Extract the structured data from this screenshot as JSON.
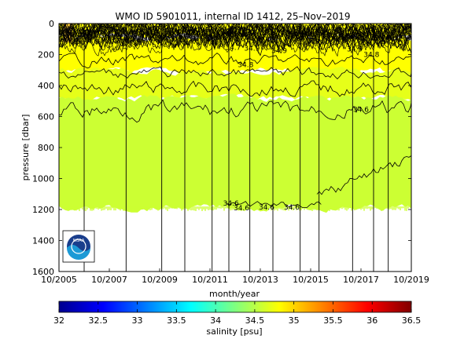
{
  "chart_data": {
    "type": "heatmap",
    "title": "WMO ID 5901011, internal ID 1412, 25–Nov–2019",
    "xlabel": "month/year",
    "ylabel": "pressure [dbar]",
    "xlim": [
      "2005-10",
      "2019-10"
    ],
    "ylim": [
      0,
      1600
    ],
    "y_reversed": true,
    "x_ticks": [
      "10/2005",
      "10/2007",
      "10/2009",
      "10/2011",
      "10/2013",
      "10/2015",
      "10/2017",
      "10/2019"
    ],
    "y_ticks": [
      0,
      200,
      400,
      600,
      800,
      1000,
      1200,
      1400,
      1600
    ],
    "grid": false,
    "colorbar": {
      "label": "salinity [psu]",
      "min": 32,
      "max": 36.5,
      "ticks": [
        "32",
        "32.5",
        "33",
        "33.5",
        "34",
        "34.5",
        "35",
        "35.5",
        "36",
        "36.5"
      ],
      "colormap": "jet"
    },
    "layers": [
      {
        "from_dbar": 0,
        "to_dbar": 90,
        "salinity_psu": 35.0,
        "color": "#ffff00"
      },
      {
        "from_dbar": 90,
        "to_dbar": 310,
        "salinity_psu": 34.9,
        "color": "#ffff00"
      },
      {
        "from_dbar": 310,
        "to_dbar": 480,
        "salinity_psu": 34.75,
        "color": "#e6ff19"
      },
      {
        "from_dbar": 480,
        "to_dbar": 1190,
        "salinity_psu": 34.6,
        "color": "#ccff33"
      }
    ],
    "contour_labels": [
      {
        "text": "34.8",
        "date": "2013-03",
        "dbar": 265
      },
      {
        "text": "34.6",
        "date": "2017-10",
        "dbar": 555
      },
      {
        "text": "34.6",
        "date": "2012-08",
        "dbar": 1160
      },
      {
        "text": "34.6",
        "date": "2013-01",
        "dbar": 1190
      },
      {
        "text": "34.6",
        "date": "2014-01",
        "dbar": 1185
      },
      {
        "text": "34.6",
        "date": "2015-01",
        "dbar": 1185
      },
      {
        "text": "34.7",
        "date": "2012-09",
        "dbar": 155
      },
      {
        "text": "34.9",
        "date": "2013-06",
        "dbar": 160
      },
      {
        "text": "34.8",
        "date": "2018-03",
        "dbar": 200
      },
      {
        "text": "34.9",
        "date": "2014-07",
        "dbar": 175
      },
      {
        "text": "34.9",
        "date": "2017-07",
        "dbar": 165
      }
    ],
    "profile_dates": [
      "2005-10",
      "2006-10",
      "2008-06",
      "2009-11",
      "2010-10",
      "2011-11",
      "2012-07",
      "2013-05",
      "2014-04",
      "2015-05",
      "2016-02",
      "2017-06",
      "2018-04",
      "2018-11"
    ],
    "logo": "NOAA"
  }
}
